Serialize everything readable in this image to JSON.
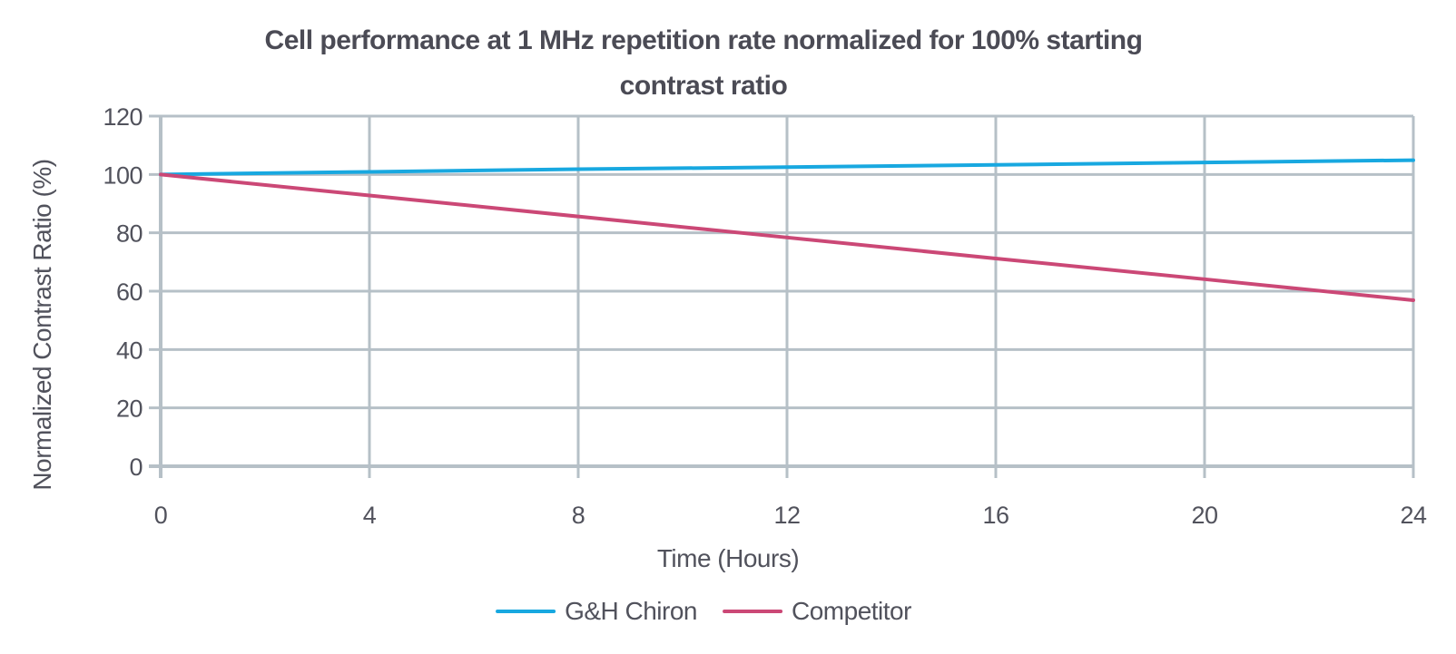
{
  "header": {
    "title_lines": [
      "Cell performance at 1 MHz repetition rate normalized for 100% starting",
      "contrast ratio"
    ]
  },
  "style": {
    "background": "#ffffff",
    "title_color": "#4b4b55",
    "axis_text_color": "#51525c",
    "grid_color": "#b6c0c7"
  },
  "chart_data": {
    "type": "line",
    "title": "Cell performance at 1 MHz repetition rate normalized for 100% starting contrast ratio",
    "xlabel": "Time (Hours)",
    "ylabel": "Normalized Contrast Ratio (%)",
    "xlim": [
      0,
      24
    ],
    "ylim": [
      0,
      120
    ],
    "xticks": [
      0,
      4,
      8,
      12,
      16,
      20,
      24
    ],
    "yticks": [
      0,
      20,
      40,
      60,
      80,
      100,
      120
    ],
    "grid": true,
    "legend_position": "bottom",
    "x": [
      0,
      4,
      8,
      12,
      16,
      20,
      24
    ],
    "series": [
      {
        "name": "G&H Chiron",
        "color": "#18a8e0",
        "values": [
          100,
          100.9,
          101.8,
          102.5,
          103.3,
          104.1,
          104.9
        ]
      },
      {
        "name": "Competitor",
        "color": "#cb4876",
        "values": [
          100,
          92.8,
          85.6,
          78.4,
          71.2,
          64.1,
          56.9
        ]
      }
    ]
  }
}
